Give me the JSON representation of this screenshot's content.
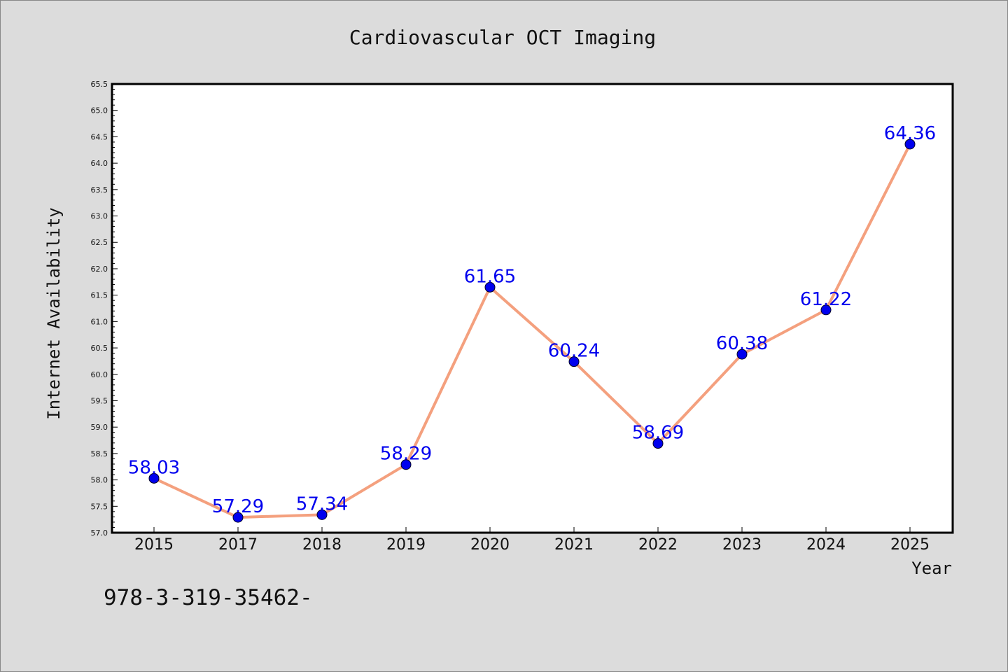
{
  "chart_data": {
    "type": "line",
    "title": "Cardiovascular OCT Imaging",
    "xlabel": "Year",
    "ylabel": "Internet Availability",
    "categories": [
      "2015",
      "2017",
      "2018",
      "2019",
      "2020",
      "2021",
      "2022",
      "2023",
      "2024",
      "2025"
    ],
    "values": [
      58.03,
      57.29,
      57.34,
      58.29,
      61.65,
      60.24,
      58.69,
      60.38,
      61.22,
      64.36
    ],
    "data_labels": [
      "58.03",
      "57.29",
      "57.34",
      "58.29",
      "61.65",
      "60.24",
      "58.69",
      "60.38",
      "61.22",
      "64.36"
    ],
    "ylim": [
      57.0,
      65.5
    ],
    "ytick_step": 0.5,
    "yticks": [
      "57.0",
      "57.5",
      "58.0",
      "58.5",
      "59.0",
      "59.5",
      "60.0",
      "60.5",
      "61.0",
      "61.5",
      "62.0",
      "62.5",
      "63.0",
      "63.5",
      "64.0",
      "64.5",
      "65.0",
      "65.5"
    ],
    "grid": false,
    "line_color": "#f4a07e",
    "marker_color": "#0000ee",
    "label_color": "#0000ee"
  },
  "footnote": "978-3-319-35462-"
}
